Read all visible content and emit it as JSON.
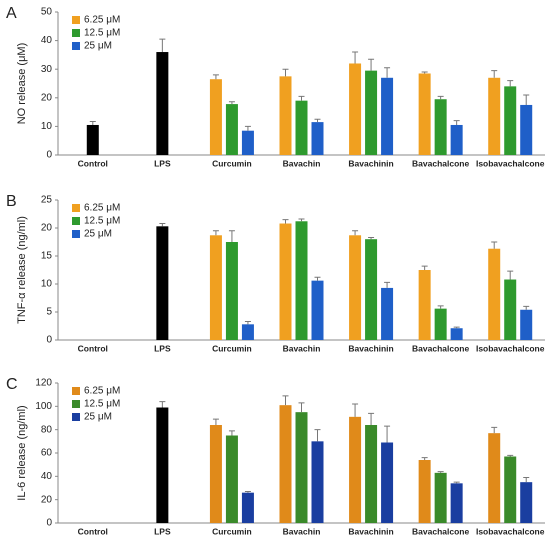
{
  "chart_data": [
    {
      "type": "bar",
      "panel": "A",
      "ylabel": "NO release (μM)",
      "categories": [
        "Control",
        "LPS",
        "Curcumin",
        "Bavachin",
        "Bavachinin",
        "Bavachalcone",
        "Isobavachalcone"
      ],
      "series": [
        {
          "color": "#000000",
          "values": [
            10.5,
            36,
            null,
            null,
            null,
            null,
            null
          ],
          "errors": [
            1.2,
            4.5,
            null,
            null,
            null,
            null,
            null
          ]
        },
        {
          "name": "6.25 μM",
          "color": "#f0a020",
          "values": [
            null,
            null,
            26.5,
            27.5,
            32,
            28.5,
            27
          ],
          "errors": [
            null,
            null,
            1.5,
            2.5,
            4,
            0.5,
            2.5
          ]
        },
        {
          "name": "12.5 μM",
          "color": "#2e9a2e",
          "values": [
            null,
            null,
            17.8,
            19,
            29.5,
            19.5,
            24
          ],
          "errors": [
            null,
            null,
            0.8,
            1.5,
            4,
            1,
            2
          ]
        },
        {
          "name": "25 μM",
          "color": "#1f5fc8",
          "values": [
            null,
            null,
            8.5,
            11.5,
            27,
            10.5,
            17.5
          ],
          "errors": [
            null,
            null,
            1.5,
            1,
            3.5,
            1.5,
            3.5
          ]
        }
      ],
      "ylim": [
        0,
        50
      ],
      "yticks": [
        0,
        10,
        20,
        30,
        40,
        50
      ]
    },
    {
      "type": "bar",
      "panel": "B",
      "ylabel": "TNF-α release (ng/ml)",
      "categories": [
        "Control",
        "LPS",
        "Curcumin",
        "Bavachin",
        "Bavachinin",
        "Bavachalcone",
        "Isobavachalcone"
      ],
      "series": [
        {
          "color": "#000000",
          "values": [
            null,
            20.3,
            null,
            null,
            null,
            null,
            null
          ],
          "errors": [
            null,
            0.5,
            null,
            null,
            null,
            null,
            null
          ]
        },
        {
          "name": "6.25 μM",
          "color": "#f0a020",
          "values": [
            null,
            null,
            18.7,
            20.8,
            18.7,
            12.5,
            16.3
          ],
          "errors": [
            null,
            null,
            0.8,
            0.7,
            0.8,
            0.7,
            1.2
          ]
        },
        {
          "name": "12.5 μM",
          "color": "#2e9a2e",
          "values": [
            null,
            null,
            17.5,
            21.2,
            18,
            5.6,
            10.8
          ],
          "errors": [
            null,
            null,
            2,
            0.4,
            0.3,
            0.5,
            1.5
          ]
        },
        {
          "name": "25 μM",
          "color": "#1f5fc8",
          "values": [
            null,
            null,
            2.8,
            10.6,
            9.3,
            2.1,
            5.4
          ],
          "errors": [
            null,
            null,
            0.5,
            0.6,
            1,
            0.2,
            0.6
          ]
        }
      ],
      "ylim": [
        0,
        25
      ],
      "yticks": [
        0,
        5,
        10,
        15,
        20,
        25
      ]
    },
    {
      "type": "bar",
      "panel": "C",
      "ylabel": "IL-6 release (ng/ml)",
      "categories": [
        "Control",
        "LPS",
        "Curcumin",
        "Bavachin",
        "Bavachinin",
        "Bavachalcone",
        "Isobavachalcone"
      ],
      "series": [
        {
          "color": "#000000",
          "values": [
            null,
            99,
            null,
            null,
            null,
            null,
            null
          ],
          "errors": [
            null,
            5,
            null,
            null,
            null,
            null,
            null
          ]
        },
        {
          "name": "6.25 μM",
          "color": "#e08a1a",
          "values": [
            null,
            null,
            84,
            101,
            91,
            54,
            77
          ],
          "errors": [
            null,
            null,
            5,
            8,
            11,
            2,
            5
          ]
        },
        {
          "name": "12.5 μM",
          "color": "#3a8a2a",
          "values": [
            null,
            null,
            75,
            95,
            84,
            43,
            57
          ],
          "errors": [
            null,
            null,
            4,
            8,
            10,
            1,
            1
          ]
        },
        {
          "name": "25 μM",
          "color": "#1a3ea0",
          "values": [
            null,
            null,
            26,
            70,
            69,
            34,
            35
          ],
          "errors": [
            null,
            null,
            1,
            10,
            14,
            1,
            4
          ]
        }
      ],
      "ylim": [
        0,
        120
      ],
      "yticks": [
        0,
        20,
        40,
        60,
        80,
        100,
        120
      ]
    }
  ]
}
